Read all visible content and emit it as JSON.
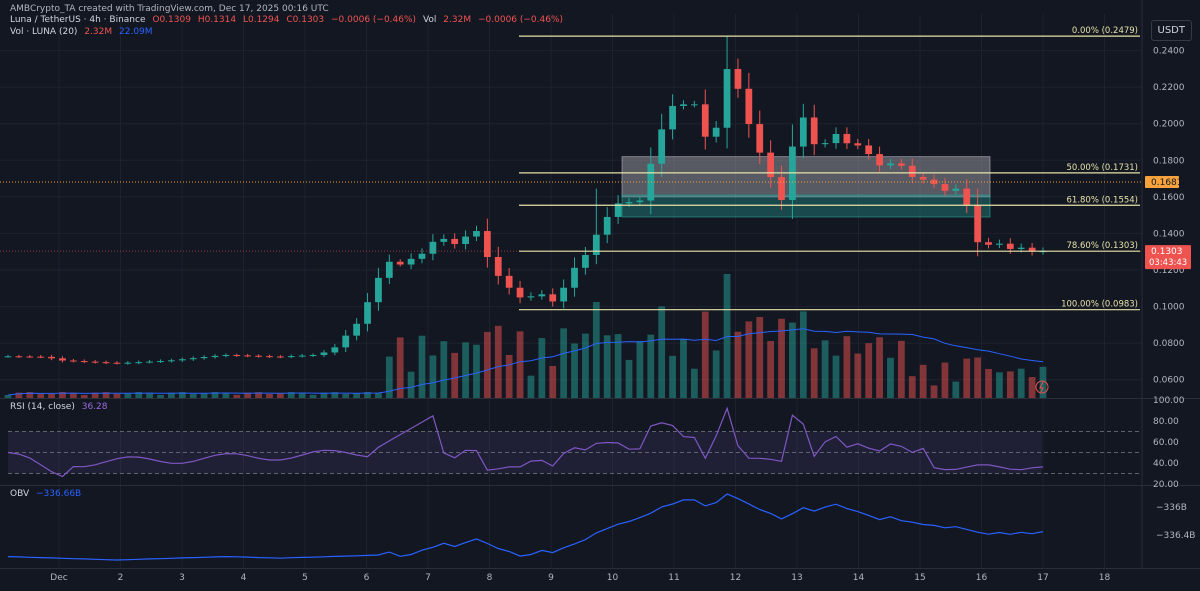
{
  "header": {
    "credit": "AMBCrypto_TA created with TradingView.com, Dec 17, 2025 00:16 UTC",
    "symbol": "Luna / TetherUS · 4h · Binance",
    "o": "O0.1309",
    "h": "H0.1314",
    "l": "L0.1294",
    "c": "C0.1303",
    "change": "−0.0006 (−0.46%)",
    "vol_label": "Vol",
    "vol_value": "2.32M",
    "vol_change": "−0.0006 (−0.46%)",
    "vol_indicator": "Vol · LUNA (20)",
    "vol_a": "2.32M",
    "vol_b": "22.09M",
    "currency": "USDT"
  },
  "rsi": {
    "label": "RSI (14, close)",
    "value": "36.28"
  },
  "obv": {
    "label": "OBV",
    "value": "−336.66B"
  },
  "colors": {
    "up": "#26a69a",
    "down": "#ef5350",
    "fib": "#e6e2a8",
    "rsi": "#7e57c2",
    "obv": "#2962ff",
    "vol_ma": "#2962ff"
  },
  "chart_data": {
    "type": "candlestick",
    "price_axis": {
      "ylim": [
        0.05,
        0.26
      ],
      "ticks": [
        "0.2400",
        "0.2200",
        "0.2000",
        "0.1800",
        "0.1600",
        "0.1400",
        "0.1200",
        "0.1000",
        "0.0800",
        "0.0600"
      ]
    },
    "x_ticks": [
      "Dec",
      "2",
      "3",
      "4",
      "5",
      "6",
      "7",
      "8",
      "9",
      "10",
      "11",
      "12",
      "13",
      "14",
      "15",
      "16",
      "17",
      "18"
    ],
    "fib_levels": [
      {
        "label": "0.00% (0.2479)",
        "value": 0.2479
      },
      {
        "label": "50.00% (0.1731)",
        "value": 0.1731
      },
      {
        "label": "61.80% (0.1554)",
        "value": 0.1554
      },
      {
        "label": "78.60% (0.1303)",
        "value": 0.1303
      },
      {
        "label": "100.00% (0.0983)",
        "value": 0.0983
      }
    ],
    "price_labels": {
      "ref": "0.1681",
      "last": "0.1303",
      "countdown": "03:43:43"
    },
    "zones": [
      {
        "name": "supply-zone",
        "from_day": 10.2,
        "to_day": 16.2,
        "low": 0.16,
        "high": 0.182
      },
      {
        "name": "demand-zone",
        "from_day": 10.2,
        "to_day": 16.2,
        "low": 0.149,
        "high": 0.161
      }
    ],
    "rsi_axis": {
      "ylim": [
        20,
        100
      ],
      "ticks": [
        "100.00",
        "80.00",
        "60.00",
        "40.00",
        "20.00"
      ],
      "bands": [
        70,
        30
      ]
    },
    "obv_axis": {
      "ticks": [
        "−336B",
        "−336.4B"
      ]
    },
    "candles": [],
    "rsi_values": [],
    "obv_values": []
  }
}
